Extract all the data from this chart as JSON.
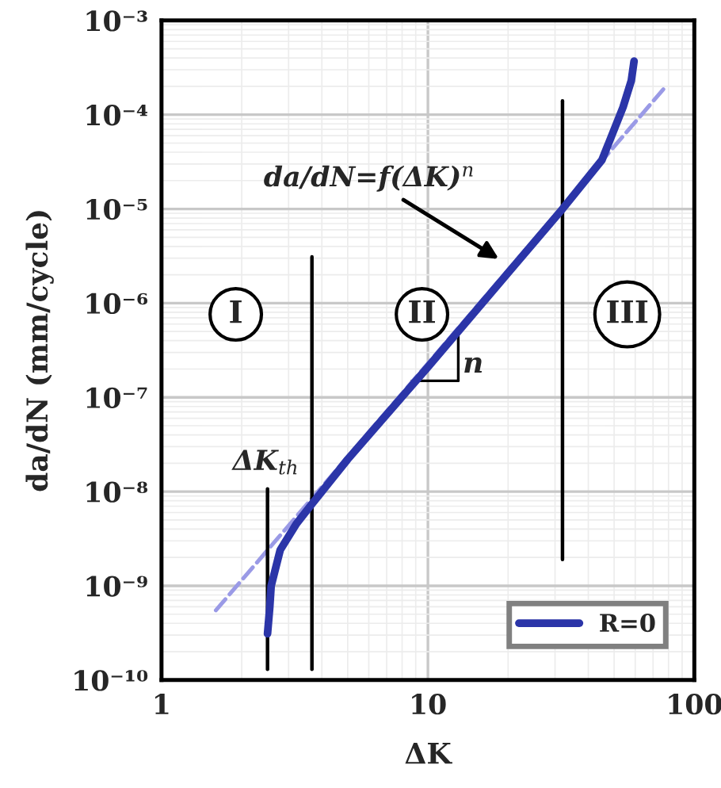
{
  "chart_data": {
    "type": "line",
    "xlabel": "ΔK",
    "ylabel": "da/dN (mm/cycle)",
    "log": "xy",
    "grid": true,
    "legend": "bottom right",
    "marker": "none",
    "xlim": [
      1,
      100
    ],
    "xticks": [
      1,
      10,
      100
    ],
    "ylim": [
      1e-10,
      0.001
    ],
    "yticks": [
      {
        "value": 1e-10,
        "label": "10⁻¹⁰"
      },
      {
        "value": 1e-09,
        "label": "10⁻⁹"
      },
      {
        "value": 1e-08,
        "label": "10⁻⁸"
      },
      {
        "value": 1e-07,
        "label": "10⁻⁷"
      },
      {
        "value": 1e-06,
        "label": "10⁻⁶"
      },
      {
        "value": 1e-05,
        "label": "10⁻⁵"
      },
      {
        "value": 0.0001,
        "label": "10⁻⁴"
      },
      {
        "value": 0.001,
        "label": "10⁻³"
      }
    ],
    "series": [
      {
        "color": "#9a9ae6",
        "line_style": "dashed",
        "x": [
          1.6,
          77
        ],
        "values": [
          5.5e-10,
          0.00019
        ]
      },
      {
        "color": "#000000",
        "line_style": "solid",
        "x": [
          2.5,
          2.5
        ],
        "values": [
          1.3e-10,
          1.07e-08
        ]
      },
      {
        "color": "#000000",
        "line_style": "solid",
        "x": [
          3.67,
          3.67
        ],
        "values": [
          1.3e-10,
          3.1e-06
        ]
      },
      {
        "color": "#000000",
        "line_style": "solid",
        "x": [
          32,
          32
        ],
        "values": [
          1.9e-09,
          0.00014
        ]
      },
      {
        "name": "R=0",
        "color": "#2b35a8",
        "line_style": "solid",
        "x": [
          2.5,
          2.55,
          2.58,
          2.79,
          3.2,
          3.67,
          5,
          10,
          20,
          32,
          45,
          54,
          58,
          59.4
        ],
        "values": [
          3.1e-10,
          6e-10,
          1e-09,
          2.4e-09,
          4.5e-09,
          7.4e-09,
          2.2e-08,
          2.1e-07,
          2.1e-06,
          1e-05,
          3.3e-05,
          0.00012,
          0.00023,
          0.00037
        ]
      }
    ],
    "annotations": [
      {
        "text": "I",
        "x": 1.9,
        "y": 7.6e-07
      },
      {
        "text": "II",
        "x": 9.5,
        "y": 7.6e-07
      },
      {
        "text": "III",
        "x": 56,
        "y": 7.6e-07
      },
      "da/dN=f(ΔK)$^{n}$",
      "n",
      "ΔK$_{th}$"
    ]
  }
}
